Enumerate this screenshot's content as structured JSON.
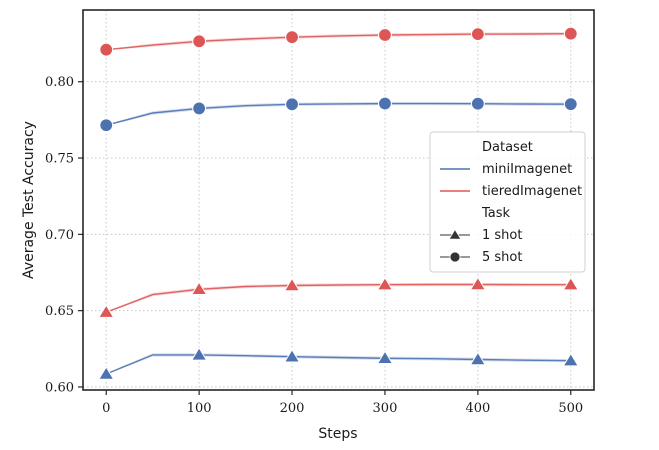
{
  "chart_data": {
    "type": "line",
    "xlabel": "Steps",
    "ylabel": "Average Test Accuracy",
    "xlim": [
      -25,
      525
    ],
    "ylim": [
      0.598,
      0.847
    ],
    "xticks": [
      0,
      100,
      200,
      300,
      400,
      500
    ],
    "yticks": [
      0.6,
      0.65,
      0.7,
      0.75,
      0.8
    ],
    "grid": true,
    "legend_position": "center-right",
    "legend": {
      "hue_title": "Dataset",
      "style_title": "Task",
      "entries": [
        {
          "label": "miniImagenet",
          "kind": "line",
          "color": "#4c72b0"
        },
        {
          "label": "tieredImagenet",
          "kind": "line",
          "color": "#dd5555"
        },
        {
          "label": "1 shot",
          "kind": "marker",
          "marker": "triangle"
        },
        {
          "label": "5 shot",
          "kind": "marker",
          "marker": "circle"
        }
      ]
    },
    "series": [
      {
        "dataset": "miniImagenet",
        "task": "5 shot",
        "color": "#4c72b0",
        "marker": "circle",
        "line": [
          [
            0,
            0.7715
          ],
          [
            50,
            0.7795
          ],
          [
            100,
            0.7825
          ],
          [
            150,
            0.7843
          ],
          [
            200,
            0.7852
          ],
          [
            250,
            0.7855
          ],
          [
            300,
            0.7857
          ],
          [
            350,
            0.7857
          ],
          [
            400,
            0.7856
          ],
          [
            450,
            0.7854
          ],
          [
            500,
            0.7853
          ]
        ],
        "marker_x": [
          0,
          100,
          200,
          300,
          400,
          500
        ],
        "marker_y": [
          0.7715,
          0.7825,
          0.7852,
          0.7857,
          0.7856,
          0.7853
        ]
      },
      {
        "dataset": "tieredImagenet",
        "task": "5 shot",
        "color": "#dd5555",
        "marker": "circle",
        "line": [
          [
            0,
            0.821
          ],
          [
            50,
            0.824
          ],
          [
            100,
            0.8265
          ],
          [
            150,
            0.828
          ],
          [
            200,
            0.8292
          ],
          [
            250,
            0.83
          ],
          [
            300,
            0.8306
          ],
          [
            350,
            0.8309
          ],
          [
            400,
            0.8312
          ],
          [
            450,
            0.8313
          ],
          [
            500,
            0.8315
          ]
        ],
        "marker_x": [
          0,
          100,
          200,
          300,
          400,
          500
        ],
        "marker_y": [
          0.821,
          0.8265,
          0.8292,
          0.8306,
          0.8312,
          0.8315
        ]
      },
      {
        "dataset": "tieredImagenet",
        "task": "1 shot",
        "color": "#dd5555",
        "marker": "triangle",
        "line": [
          [
            0,
            0.649
          ],
          [
            50,
            0.6605
          ],
          [
            100,
            0.664
          ],
          [
            150,
            0.6658
          ],
          [
            200,
            0.6665
          ],
          [
            250,
            0.6668
          ],
          [
            300,
            0.667
          ],
          [
            350,
            0.6671
          ],
          [
            400,
            0.6671
          ],
          [
            450,
            0.667
          ],
          [
            500,
            0.667
          ]
        ],
        "marker_x": [
          0,
          100,
          200,
          300,
          400,
          500
        ],
        "marker_y": [
          0.649,
          0.664,
          0.6665,
          0.667,
          0.6671,
          0.667
        ]
      },
      {
        "dataset": "miniImagenet",
        "task": "1 shot",
        "color": "#4c72b0",
        "marker": "triangle",
        "line": [
          [
            0,
            0.6085
          ],
          [
            50,
            0.621
          ],
          [
            100,
            0.621
          ],
          [
            150,
            0.6205
          ],
          [
            200,
            0.6198
          ],
          [
            250,
            0.6193
          ],
          [
            300,
            0.6188
          ],
          [
            350,
            0.6185
          ],
          [
            400,
            0.618
          ],
          [
            450,
            0.6175
          ],
          [
            500,
            0.6172
          ]
        ],
        "marker_x": [
          0,
          100,
          200,
          300,
          400,
          500
        ],
        "marker_y": [
          0.6085,
          0.621,
          0.6198,
          0.6188,
          0.618,
          0.6172
        ]
      }
    ]
  }
}
